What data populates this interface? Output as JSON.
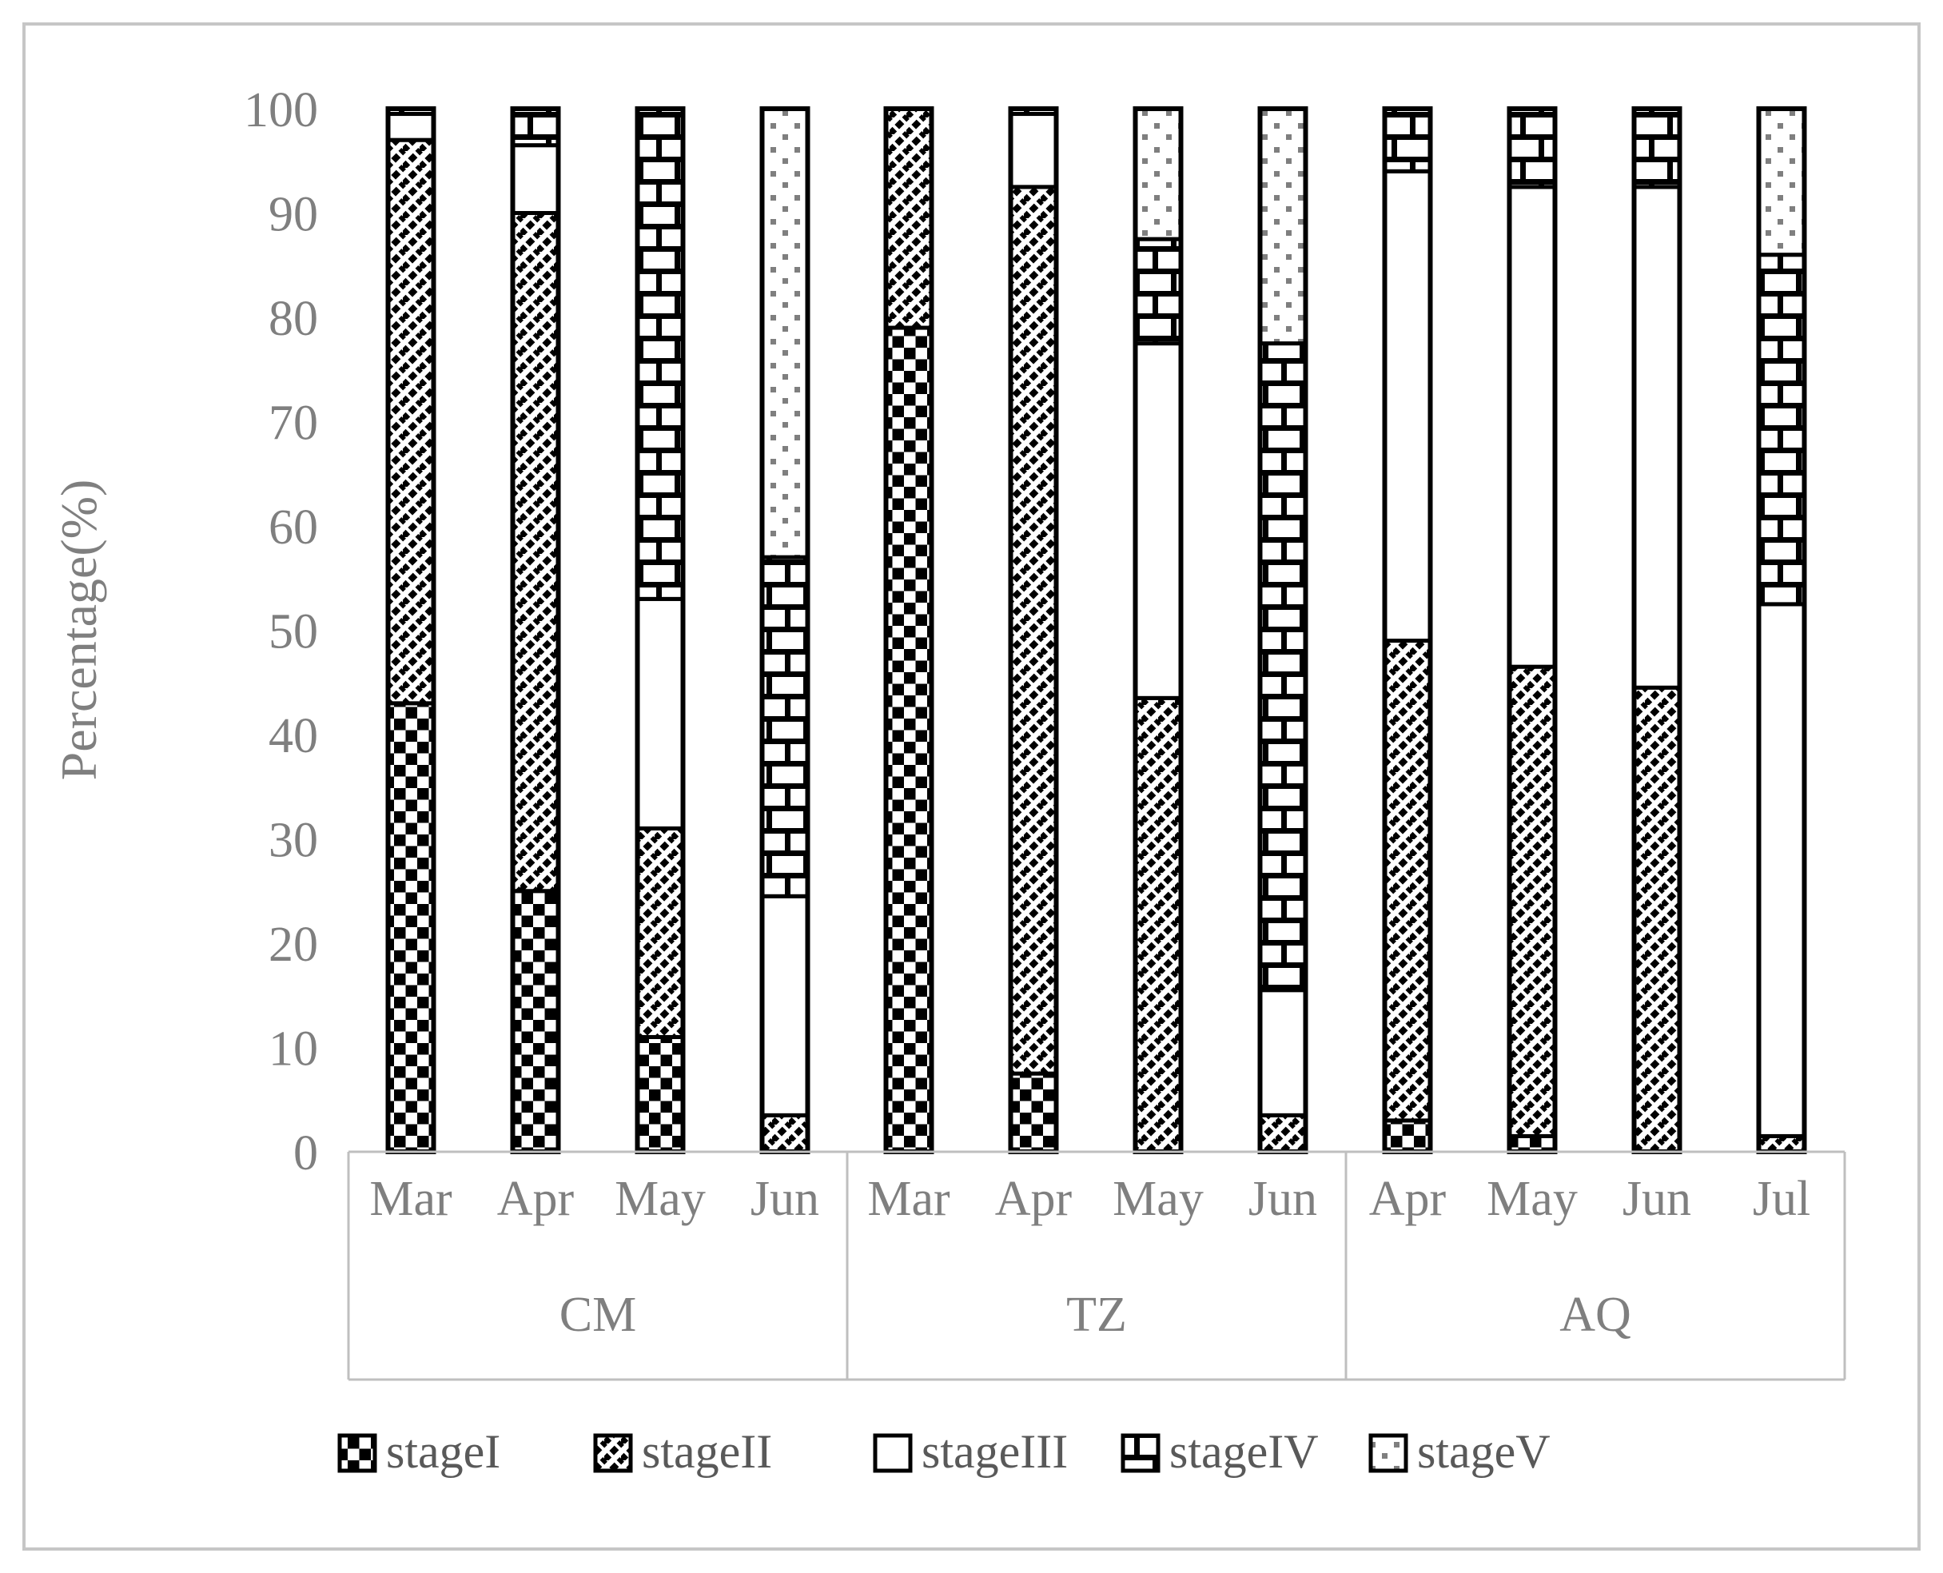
{
  "figure": {
    "bg": "#ffffff",
    "frame_color": "#c6c6c6",
    "text_color": "#7f7f7f",
    "line_color": "#bfbfbf",
    "bar_color": "#000000",
    "dot_color": "#7f7f7f"
  },
  "y_axis": {
    "title": "Percentage(%)",
    "ticks": [
      "100",
      "90",
      "80",
      "70",
      "60",
      "50",
      "40",
      "30",
      "20",
      "10",
      "0"
    ]
  },
  "x_axis": {
    "groups": [
      {
        "label": "CM",
        "months": [
          "Mar",
          "Apr",
          "May",
          "Jun"
        ]
      },
      {
        "label": "TZ",
        "months": [
          "Mar",
          "Apr",
          "May",
          "Jun"
        ]
      },
      {
        "label": "AQ",
        "months": [
          "Apr",
          "May",
          "Jun",
          "Jul"
        ]
      }
    ]
  },
  "legend": {
    "items": [
      {
        "label": "stageI",
        "pattern": "checker"
      },
      {
        "label": "stageII",
        "pattern": "diagonal"
      },
      {
        "label": "stageIII",
        "pattern": "plain"
      },
      {
        "label": "stageIV",
        "pattern": "brick"
      },
      {
        "label": "stageV",
        "pattern": "dots"
      }
    ]
  },
  "chart_data": {
    "type": "bar",
    "stacked": true,
    "ylim": [
      0,
      100
    ],
    "ylabel": "Percentage(%)",
    "grid": false,
    "legend_position": "bottom",
    "group_labels": [
      "CM",
      "TZ",
      "AQ"
    ],
    "categories": [
      "CM-Mar",
      "CM-Apr",
      "CM-May",
      "CM-Jun",
      "TZ-Mar",
      "TZ-Apr",
      "TZ-May",
      "TZ-Jun",
      "AQ-Apr",
      "AQ-May",
      "AQ-Jun",
      "AQ-Jul"
    ],
    "series": [
      {
        "name": "stageI",
        "pattern": "checker",
        "values": [
          43,
          25,
          11,
          0,
          79,
          7.5,
          0,
          0,
          3,
          1.5,
          0,
          0
        ]
      },
      {
        "name": "stageII",
        "pattern": "diagonal",
        "values": [
          54,
          65,
          20,
          3.5,
          21,
          85,
          43.5,
          3.5,
          46,
          45,
          44.5,
          1.5
        ]
      },
      {
        "name": "stageIII",
        "pattern": "plain",
        "values": [
          2.5,
          6.5,
          22,
          21,
          0,
          7,
          34,
          12,
          45,
          46,
          48,
          51
        ]
      },
      {
        "name": "stageIV",
        "pattern": "brick",
        "values": [
          0.5,
          3.5,
          47,
          32.5,
          0,
          0.5,
          10,
          62,
          6,
          7.5,
          7.5,
          33.5
        ]
      },
      {
        "name": "stageV",
        "pattern": "dots",
        "values": [
          0,
          0,
          0,
          43,
          0,
          0,
          12.5,
          22.5,
          0,
          0,
          0,
          14
        ]
      }
    ]
  }
}
